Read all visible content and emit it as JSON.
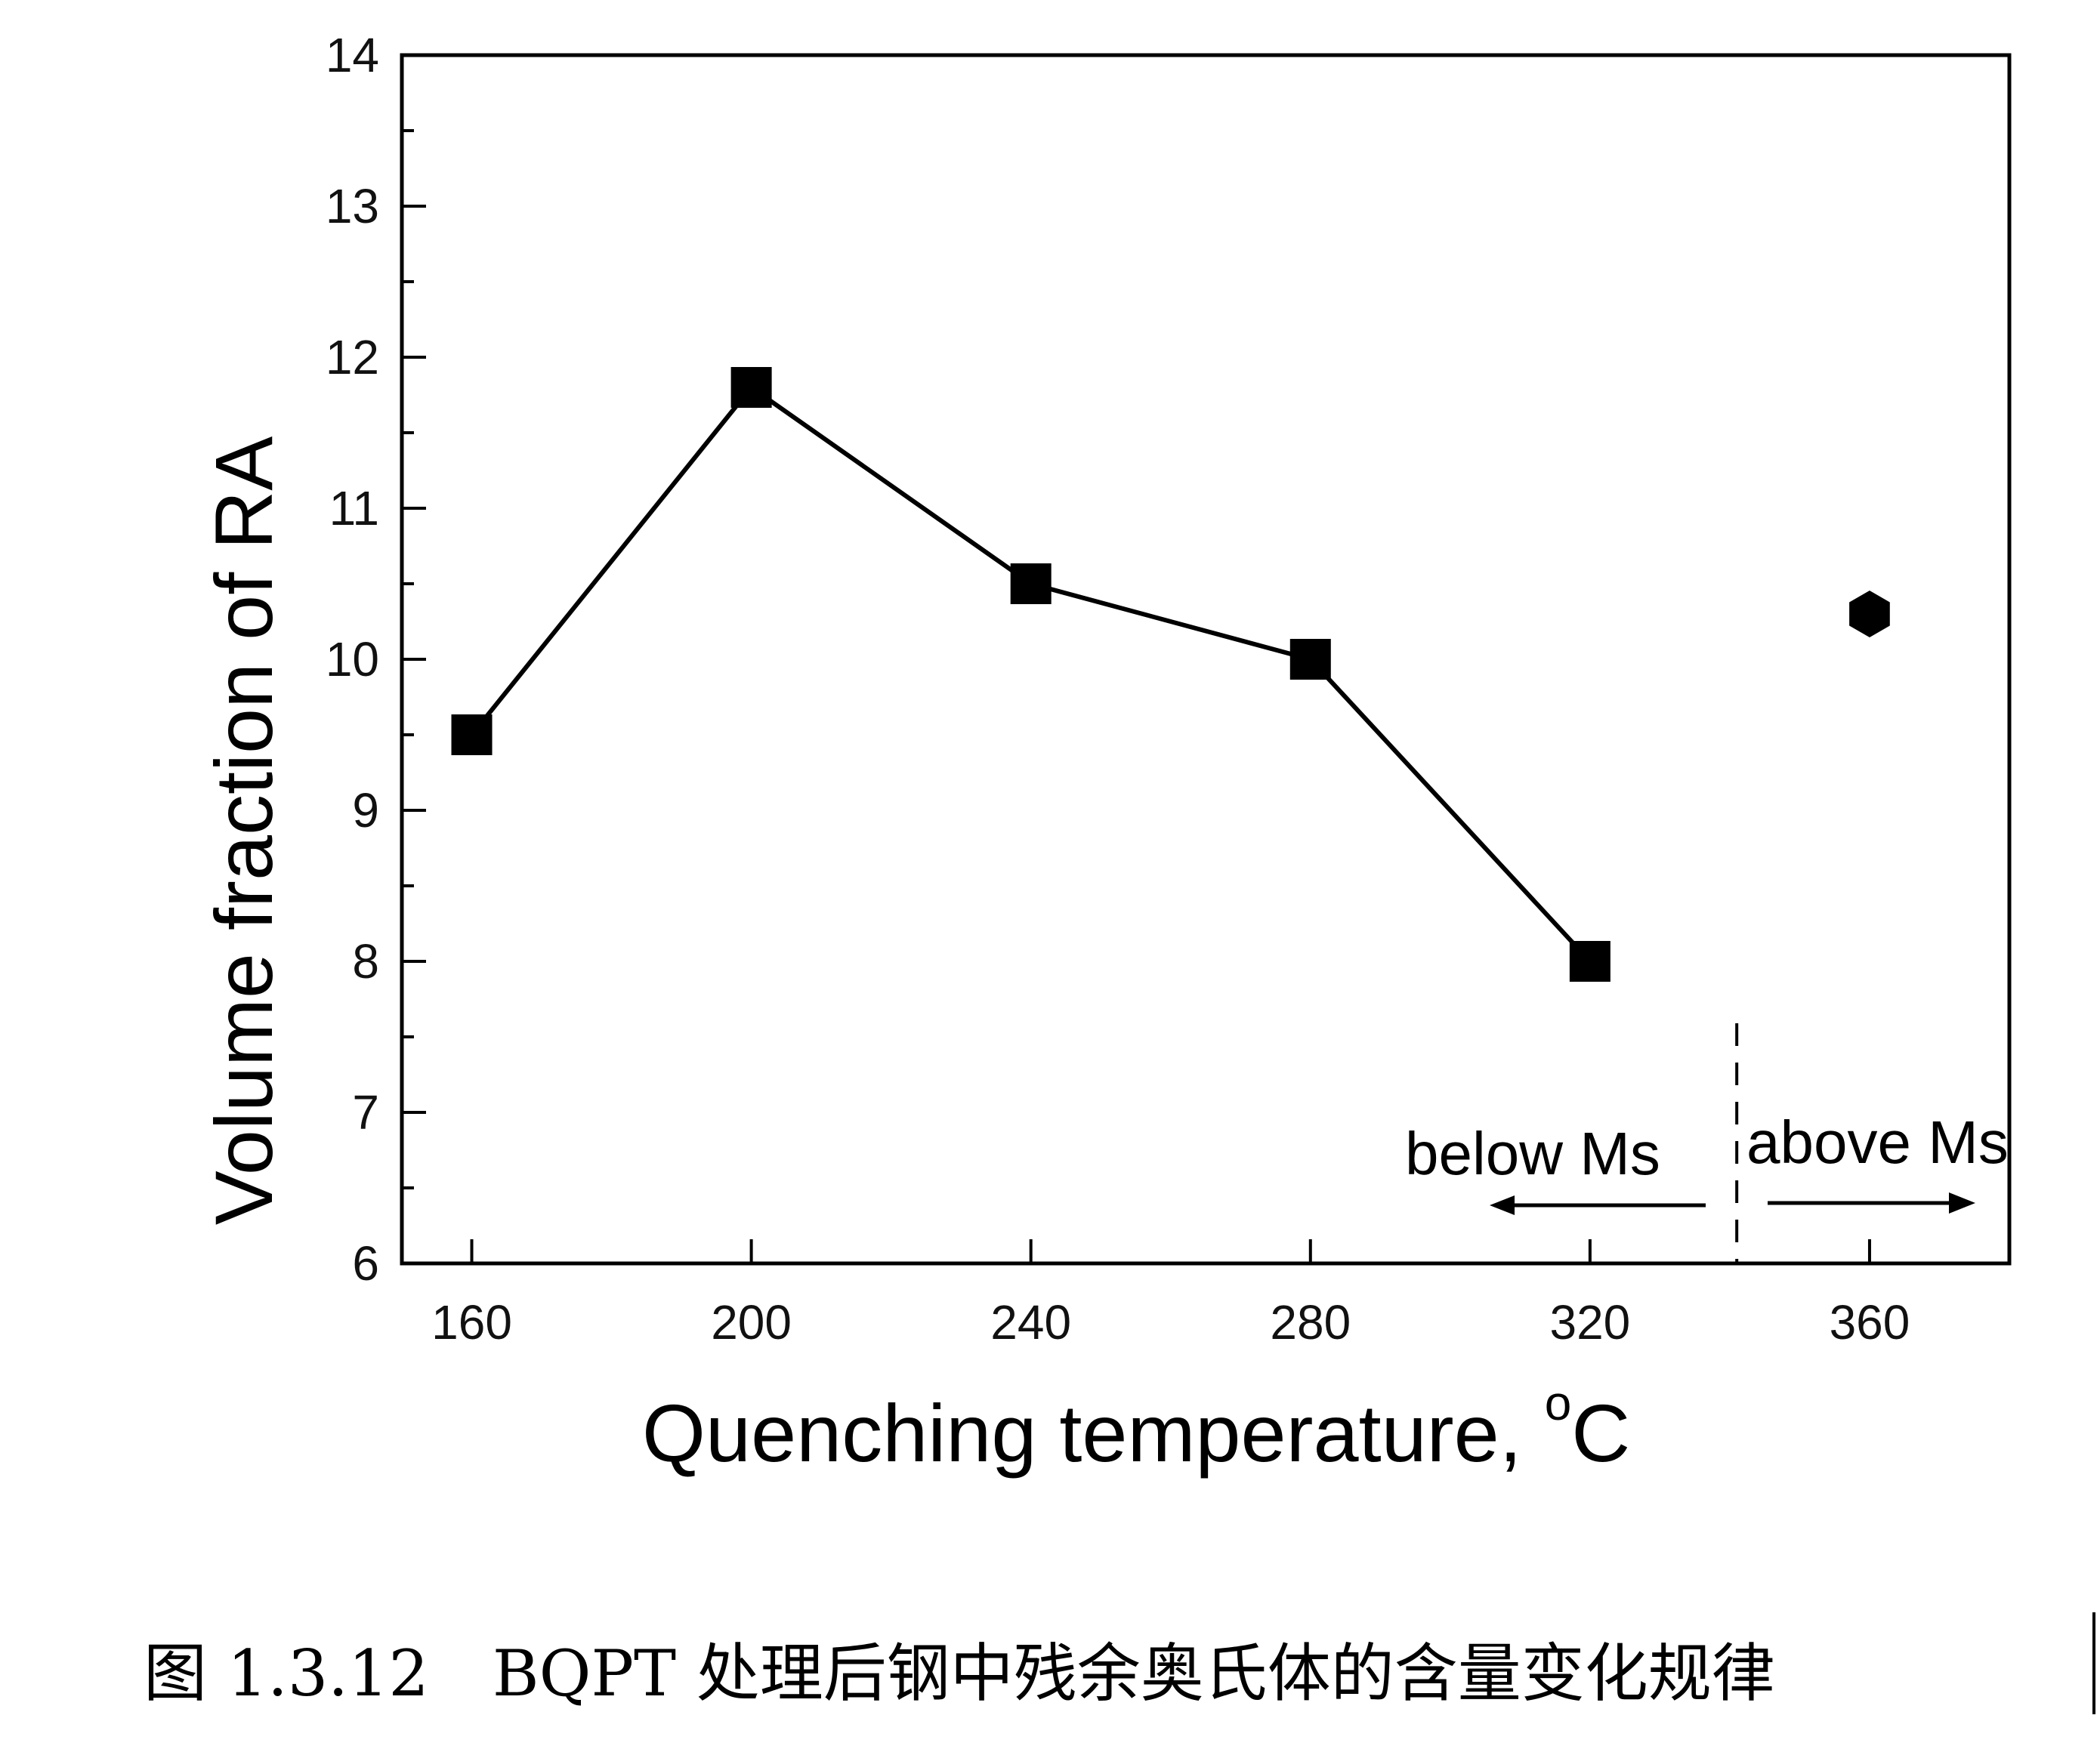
{
  "chart_data": {
    "type": "line",
    "title": "",
    "xlabel": "Quenching temperature, ",
    "xlabel_unit_sup": "o",
    "xlabel_unit": "C",
    "ylabel": "Volume fraction of RA",
    "xlim": [
      150,
      380
    ],
    "ylim": [
      6,
      14
    ],
    "xticks": [
      160,
      200,
      240,
      280,
      320,
      360
    ],
    "yticks": [
      6,
      7,
      8,
      9,
      10,
      11,
      12,
      13,
      14
    ],
    "grid": false,
    "series": [
      {
        "name": "below Ms",
        "marker": "square",
        "line": true,
        "color": "#000000",
        "x": [
          160,
          200,
          240,
          280,
          320
        ],
        "y": [
          9.5,
          11.8,
          10.5,
          10.0,
          8.0
        ]
      },
      {
        "name": "above Ms",
        "marker": "hexagon",
        "line": false,
        "color": "#000000",
        "x": [
          360
        ],
        "y": [
          10.3
        ]
      }
    ],
    "divider_x": 341,
    "annotations": {
      "below": "below Ms",
      "above": "above Ms"
    }
  },
  "caption": "图 1.3.12　BQPT 处理后钢中残余奥氏体的含量变化规律"
}
